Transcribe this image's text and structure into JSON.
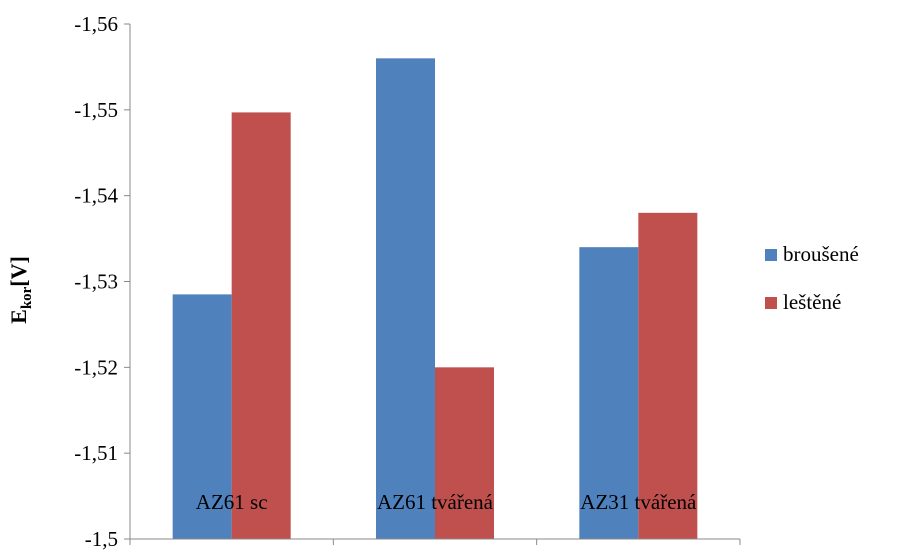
{
  "chart_data": {
    "type": "bar",
    "categories": [
      "AZ61 sc",
      "AZ61 tvářená",
      "AZ31 tvářená"
    ],
    "series": [
      {
        "name": "broušené",
        "values": [
          -1.5285,
          -1.556,
          -1.534
        ],
        "color": "#4F81BD"
      },
      {
        "name": "leštěné",
        "values": [
          -1.5497,
          -1.52,
          -1.538
        ],
        "color": "#C0504D"
      }
    ],
    "ylabel": {
      "main": "E",
      "sub": "kor",
      "unit": "[V]"
    },
    "ylim": [
      -1.5,
      -1.56
    ],
    "y_axis_inverted": true,
    "yticks": [
      -1.5,
      -1.51,
      -1.52,
      -1.53,
      -1.54,
      -1.55,
      -1.56
    ],
    "ytick_labels": [
      "-1,5",
      "-1,51",
      "-1,52",
      "-1,53",
      "-1,54",
      "-1,55",
      "-1,56"
    ],
    "grid": false,
    "legend_position": "right"
  }
}
